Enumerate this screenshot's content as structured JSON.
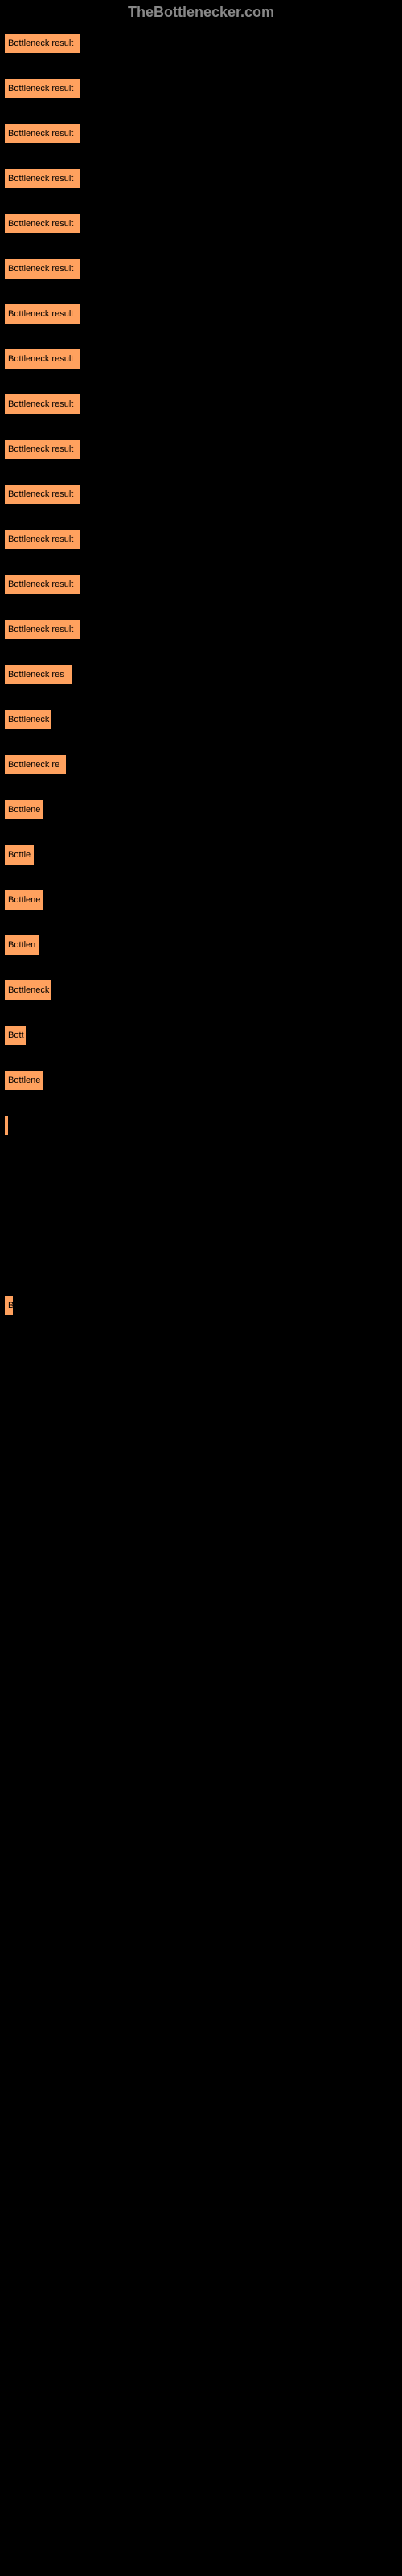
{
  "header": {
    "title": "TheBottlenecker.com"
  },
  "chart": {
    "type": "bar",
    "bar_color": "#ffa15e",
    "background_color": "#000000",
    "text_color": "#000000",
    "header_color": "#888888",
    "font_size": 11,
    "max_width": 490,
    "bars": [
      {
        "label": "Bottleneck result",
        "width": 96
      },
      {
        "label": "Bottleneck result",
        "width": 96
      },
      {
        "label": "Bottleneck result",
        "width": 96
      },
      {
        "label": "Bottleneck result",
        "width": 96
      },
      {
        "label": "Bottleneck result",
        "width": 96
      },
      {
        "label": "Bottleneck result",
        "width": 96
      },
      {
        "label": "Bottleneck result",
        "width": 96
      },
      {
        "label": "Bottleneck result",
        "width": 96
      },
      {
        "label": "Bottleneck result",
        "width": 96
      },
      {
        "label": "Bottleneck result",
        "width": 96
      },
      {
        "label": "Bottleneck result",
        "width": 96
      },
      {
        "label": "Bottleneck result",
        "width": 96
      },
      {
        "label": "Bottleneck result",
        "width": 96
      },
      {
        "label": "Bottleneck result",
        "width": 96
      },
      {
        "label": "Bottleneck res",
        "width": 85
      },
      {
        "label": "Bottleneck",
        "width": 60
      },
      {
        "label": "Bottleneck re",
        "width": 78
      },
      {
        "label": "Bottlene",
        "width": 50
      },
      {
        "label": "Bottle",
        "width": 38
      },
      {
        "label": "Bottlene",
        "width": 50
      },
      {
        "label": "Bottlen",
        "width": 44
      },
      {
        "label": "Bottleneck",
        "width": 60
      },
      {
        "label": "Bott",
        "width": 28
      },
      {
        "label": "Bottlene",
        "width": 50
      },
      {
        "label": "",
        "width": 4
      },
      {
        "label": "",
        "width": 0
      },
      {
        "label": "",
        "width": 0
      },
      {
        "label": "",
        "width": 0
      },
      {
        "label": "B",
        "width": 12
      },
      {
        "label": "",
        "width": 0
      }
    ]
  }
}
